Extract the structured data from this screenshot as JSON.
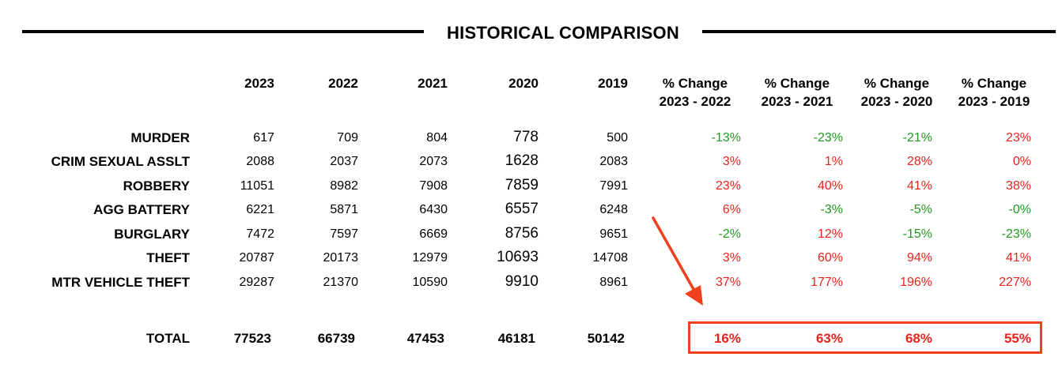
{
  "title": "HISTORICAL COMPARISON",
  "year_headers": [
    "2023",
    "2022",
    "2021",
    "2020",
    "2019"
  ],
  "pct_headers": [
    {
      "line1": "% Change",
      "line2": "2023 - 2022"
    },
    {
      "line1": "% Change",
      "line2": "2023 - 2021"
    },
    {
      "line1": "% Change",
      "line2": "2023 - 2020"
    },
    {
      "line1": "% Change",
      "line2": "2023 - 2019"
    }
  ],
  "rows": [
    {
      "label": "MURDER",
      "values": [
        "617",
        "709",
        "804",
        "778",
        "500"
      ],
      "pct": [
        "-13%",
        "-23%",
        "-21%",
        "23%"
      ]
    },
    {
      "label": "CRIM SEXUAL ASSLT",
      "values": [
        "2088",
        "2037",
        "2073",
        "1628",
        "2083"
      ],
      "pct": [
        "3%",
        "1%",
        "28%",
        "0%"
      ]
    },
    {
      "label": "ROBBERY",
      "values": [
        "11051",
        "8982",
        "7908",
        "7859",
        "7991"
      ],
      "pct": [
        "23%",
        "40%",
        "41%",
        "38%"
      ]
    },
    {
      "label": "AGG BATTERY",
      "values": [
        "6221",
        "5871",
        "6430",
        "6557",
        "6248"
      ],
      "pct": [
        "6%",
        "-3%",
        "-5%",
        "-0%"
      ]
    },
    {
      "label": "BURGLARY",
      "values": [
        "7472",
        "7597",
        "6669",
        "8756",
        "9651"
      ],
      "pct": [
        "-2%",
        "12%",
        "-15%",
        "-23%"
      ]
    },
    {
      "label": "THEFT",
      "values": [
        "20787",
        "20173",
        "12979",
        "10693",
        "14708"
      ],
      "pct": [
        "3%",
        "60%",
        "94%",
        "41%"
      ]
    },
    {
      "label": "MTR VEHICLE THEFT",
      "values": [
        "29287",
        "21370",
        "10590",
        "9910",
        "8961"
      ],
      "pct": [
        "37%",
        "177%",
        "196%",
        "227%"
      ]
    }
  ],
  "total": {
    "label": "TOTAL",
    "values": [
      "77523",
      "66739",
      "47453",
      "46181",
      "50142"
    ],
    "pct": [
      "16%",
      "63%",
      "68%",
      "55%"
    ]
  },
  "colors": {
    "increase": "#e8231b",
    "decrease": "#1f9a1f",
    "annotation": "#f2401c"
  }
}
